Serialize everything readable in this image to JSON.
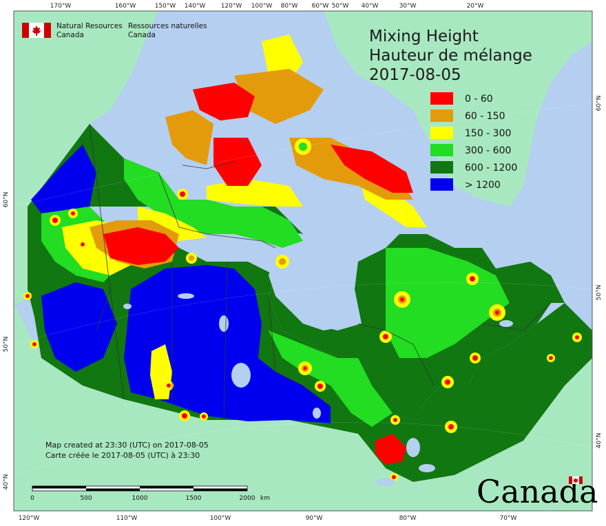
{
  "title": {
    "line1": "Mixing Height",
    "line2": "Hauteur de mélange",
    "date": "2017-08-05"
  },
  "agency": {
    "en_line1": "Natural Resources",
    "en_line2": "Canada",
    "fr_line1": "Ressources naturelles",
    "fr_line2": "Canada"
  },
  "legend": [
    {
      "label": "0 - 60",
      "color": "#ff0000"
    },
    {
      "label": "60 - 150",
      "color": "#e39b0c"
    },
    {
      "label": "150 - 300",
      "color": "#ffff00"
    },
    {
      "label": "300 - 600",
      "color": "#22dd22"
    },
    {
      "label": "600 - 1200",
      "color": "#117711"
    },
    {
      "label": "> 1200",
      "color": "#0000ee"
    }
  ],
  "top_ticks": [
    "170°W",
    "160°W",
    "150°W",
    "140°W",
    "120°W",
    "100°W",
    "80°W",
    "60°W",
    "50°W",
    "40°W",
    "30°W",
    "20°W"
  ],
  "bottom_ticks": [
    "120°W",
    "110°W",
    "100°W",
    "90°W",
    "80°W",
    "70°W"
  ],
  "left_ticks": [
    "60°N",
    "50°N",
    "40°N"
  ],
  "right_ticks": [
    "60°N",
    "50°N",
    "40°N"
  ],
  "notes": {
    "created_en": "Map created at 23:30 (UTC) on 2017-08-05",
    "created_fr": "Carte créée le 2017-08-05 (UTC) à 23:30"
  },
  "scale_bar": {
    "labels": [
      "0",
      "500",
      "1000",
      "1500",
      "2000"
    ],
    "unit": "km"
  },
  "wordmark": "Canada",
  "colors": {
    "ocean": "#b4cff0",
    "land_outside": "#a8e8c0",
    "provincial_border": "#333333"
  }
}
